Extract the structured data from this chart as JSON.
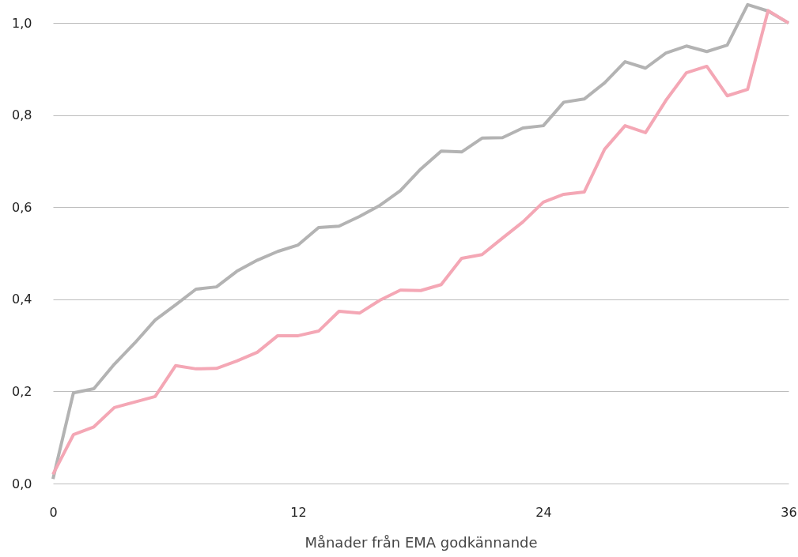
{
  "chart_data": {
    "type": "line",
    "xlabel": "Månader från EMA godkännande",
    "x": [
      0,
      1,
      2,
      3,
      4,
      5,
      6,
      7,
      8,
      9,
      10,
      11,
      12,
      13,
      14,
      15,
      16,
      17,
      18,
      19,
      20,
      21,
      22,
      23,
      24,
      25,
      26,
      27,
      28,
      29,
      30,
      31,
      32,
      33,
      34,
      35,
      36
    ],
    "xlim": [
      0,
      36
    ],
    "xticks": [
      0,
      12,
      24,
      36
    ],
    "ylim": [
      0,
      1.05
    ],
    "yticks": [
      {
        "value": 0,
        "label": "0,0"
      },
      {
        "value": 0.2,
        "label": "0,2"
      },
      {
        "value": 0.4,
        "label": "0,4"
      },
      {
        "value": 0.6,
        "label": "0,6"
      },
      {
        "value": 0.8,
        "label": "0,8"
      },
      {
        "value": 1,
        "label": "1,0"
      }
    ],
    "grid": "y",
    "series": [
      {
        "color": "#b3b3b3",
        "values": [
          0.01,
          0.197,
          0.206,
          0.259,
          0.305,
          0.355,
          0.388,
          0.422,
          0.427,
          0.461,
          0.485,
          0.504,
          0.518,
          0.556,
          0.559,
          0.58,
          0.604,
          0.636,
          0.683,
          0.722,
          0.72,
          0.75,
          0.751,
          0.772,
          0.777,
          0.828,
          0.835,
          0.87,
          0.916,
          0.902,
          0.935,
          0.95,
          0.938,
          0.952,
          1.04,
          1.026,
          1.0
        ]
      },
      {
        "color": "#f4a7b5",
        "values": [
          0.02,
          0.106,
          0.123,
          0.165,
          0.177,
          0.189,
          0.256,
          0.249,
          0.25,
          0.266,
          0.285,
          0.321,
          0.321,
          0.331,
          0.374,
          0.37,
          0.398,
          0.42,
          0.419,
          0.432,
          0.489,
          0.497,
          0.533,
          0.568,
          0.611,
          0.628,
          0.633,
          0.726,
          0.777,
          0.762,
          0.832,
          0.892,
          0.906,
          0.842,
          0.856,
          1.027,
          1.0
        ]
      }
    ]
  }
}
